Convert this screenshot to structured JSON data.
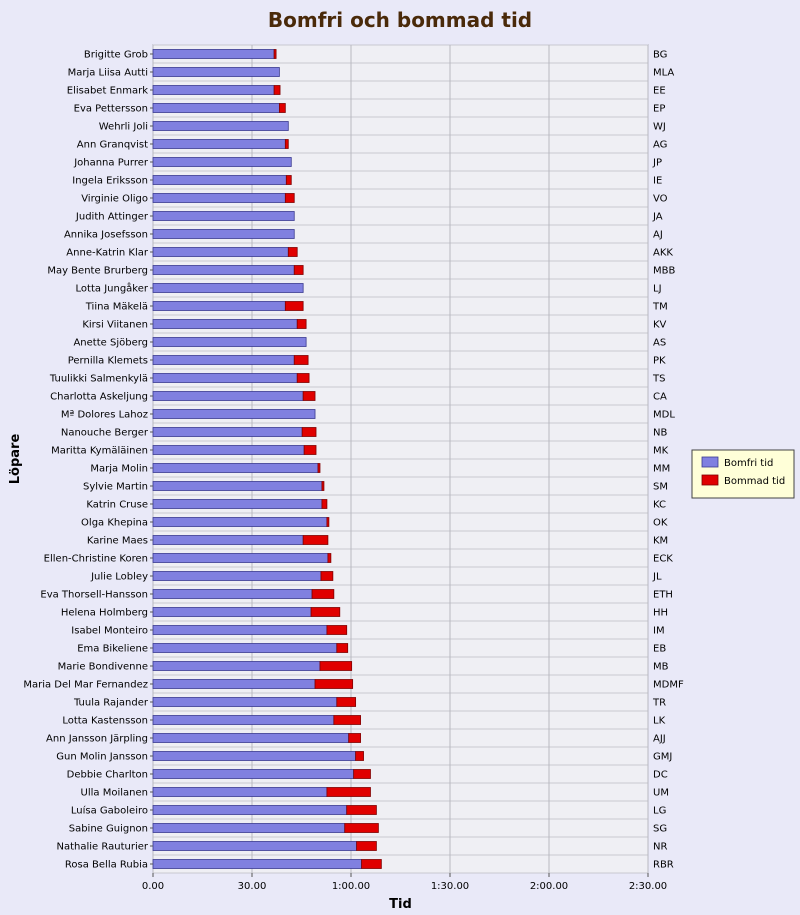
{
  "chart_data": {
    "type": "bar",
    "orientation": "horizontal",
    "stacked": true,
    "title": "Bomfri och bommad tid",
    "xlabel": "Tid",
    "ylabel": "Löpare",
    "xlim": [
      0,
      150
    ],
    "x_unit": "minutes",
    "x_ticks": [
      {
        "value": 0,
        "label": "0.00"
      },
      {
        "value": 30,
        "label": "30.00"
      },
      {
        "value": 60,
        "label": "1:00.00"
      },
      {
        "value": 90,
        "label": "1:30.00"
      },
      {
        "value": 120,
        "label": "2:00.00"
      },
      {
        "value": 150,
        "label": "2:30.00"
      }
    ],
    "grid": true,
    "legend_position": "right",
    "colors": {
      "title": "#4a2a0a",
      "plot_background": "#efeff4",
      "bomfri": "#8080e0",
      "bommad": "#e00000"
    },
    "runners": [
      {
        "name": "Brigitte Grob",
        "abbr": "BG"
      },
      {
        "name": "Marja Liisa Autti",
        "abbr": "MLA"
      },
      {
        "name": "Elisabet Enmark",
        "abbr": "EE"
      },
      {
        "name": "Eva Pettersson",
        "abbr": "EP"
      },
      {
        "name": "Wehrli Joli",
        "abbr": "WJ"
      },
      {
        "name": "Ann Granqvist",
        "abbr": "AG"
      },
      {
        "name": "Johanna Purrer",
        "abbr": "JP"
      },
      {
        "name": "Ingela Eriksson",
        "abbr": "IE"
      },
      {
        "name": "Virginie Oligo",
        "abbr": "VO"
      },
      {
        "name": "Judith Attinger",
        "abbr": "JA"
      },
      {
        "name": "Annika Josefsson",
        "abbr": "AJ"
      },
      {
        "name": "Anne-Katrin Klar",
        "abbr": "AKK"
      },
      {
        "name": "May Bente Brurberg",
        "abbr": "MBB"
      },
      {
        "name": "Lotta Jungåker",
        "abbr": "LJ"
      },
      {
        "name": "Tiina Mäkelä",
        "abbr": "TM"
      },
      {
        "name": "Kirsi Viitanen",
        "abbr": "KV"
      },
      {
        "name": "Anette Sjöberg",
        "abbr": "AS"
      },
      {
        "name": "Pernilla Klemets",
        "abbr": "PK"
      },
      {
        "name": "Tuulikki Salmenkylä",
        "abbr": "TS"
      },
      {
        "name": "Charlotta Askeljung",
        "abbr": "CA"
      },
      {
        "name": "Mª Dolores Lahoz",
        "abbr": "MDL"
      },
      {
        "name": "Nanouche Berger",
        "abbr": "NB"
      },
      {
        "name": "Maritta Kymäläinen",
        "abbr": "MK"
      },
      {
        "name": "Marja Molin",
        "abbr": "MM"
      },
      {
        "name": "Sylvie Martin",
        "abbr": "SM"
      },
      {
        "name": "Katrin Cruse",
        "abbr": "KC"
      },
      {
        "name": "Olga Khepina",
        "abbr": "OK"
      },
      {
        "name": "Karine Maes",
        "abbr": "KM"
      },
      {
        "name": "Ellen-Christine Koren",
        "abbr": "ECK"
      },
      {
        "name": "Julie Lobley",
        "abbr": "JL"
      },
      {
        "name": "Eva Thorsell-Hansson",
        "abbr": "ETH"
      },
      {
        "name": "Helena Holmberg",
        "abbr": "HH"
      },
      {
        "name": "Isabel Monteiro",
        "abbr": "IM"
      },
      {
        "name": "Ema Bikeliene",
        "abbr": "EB"
      },
      {
        "name": "Marie Bondivenne",
        "abbr": "MB"
      },
      {
        "name": "Maria Del Mar Fernandez",
        "abbr": "MDMF"
      },
      {
        "name": "Tuula Rajander",
        "abbr": "TR"
      },
      {
        "name": "Lotta Kastensson",
        "abbr": "LK"
      },
      {
        "name": "Ann Jansson Järpling",
        "abbr": "AJJ"
      },
      {
        "name": "Gun Molin Jansson",
        "abbr": "GMJ"
      },
      {
        "name": "Debbie Charlton",
        "abbr": "DC"
      },
      {
        "name": "Ulla Moilanen",
        "abbr": "UM"
      },
      {
        "name": "Luísa Gaboleiro",
        "abbr": "LG"
      },
      {
        "name": "Sabine Guignon",
        "abbr": "SG"
      },
      {
        "name": "Nathalie Rauturier",
        "abbr": "NR"
      },
      {
        "name": "Rosa Bella Rubia",
        "abbr": "RBR"
      }
    ],
    "series": [
      {
        "name": "Bomfri tid",
        "values": [
          36.7,
          38.3,
          36.7,
          38.3,
          41.0,
          40.1,
          41.9,
          40.4,
          40.1,
          42.8,
          42.8,
          41.0,
          42.8,
          45.5,
          40.1,
          43.7,
          46.4,
          42.8,
          43.7,
          45.5,
          49.1,
          45.2,
          45.8,
          50.0,
          51.2,
          51.2,
          52.7,
          45.5,
          53.0,
          50.9,
          48.2,
          47.9,
          52.7,
          55.7,
          50.6,
          49.1,
          55.7,
          54.8,
          59.3,
          61.4,
          60.8,
          52.7,
          58.7,
          58.1,
          61.7,
          63.2
        ]
      },
      {
        "name": "Bommad tid",
        "values": [
          0.6,
          0,
          1.8,
          1.8,
          0,
          0.9,
          0,
          1.5,
          2.7,
          0,
          0,
          2.7,
          2.7,
          0,
          5.4,
          2.7,
          0,
          4.2,
          3.6,
          3.6,
          0,
          4.2,
          3.6,
          0.6,
          0.6,
          1.5,
          0.6,
          7.5,
          0.9,
          3.6,
          6.6,
          8.7,
          6.0,
          3.3,
          9.6,
          11.4,
          5.7,
          8.1,
          3.6,
          2.4,
          5.1,
          13.2,
          9.0,
          10.2,
          6.0,
          6.0
        ]
      }
    ]
  }
}
